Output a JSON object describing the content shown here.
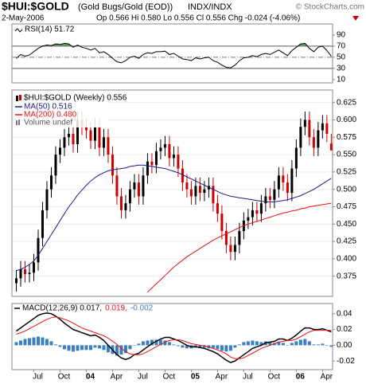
{
  "header": {
    "symbol": "$HUI:$GOLD",
    "name": "(Gold Bugs/Gold (EOD))",
    "exchange": "INDX/INDX",
    "credit": "© StockCharts.com",
    "date": "2-May-2006",
    "quote": "Op 0.566 Hi 0.580 Lo 0.556 Cl 0.556 Chg -0.024 (-4.06%)"
  },
  "chart_data": [
    {
      "type": "rsi",
      "title": "RSI(14) 51.72",
      "color": "#000000",
      "fill_color": "#5f9f5f",
      "overbought": 70,
      "midline": 50,
      "oversold": 30,
      "xlim": [
        -1,
        72.3
      ],
      "ylim": [
        4,
        110
      ],
      "yticks": [
        90,
        70,
        50,
        30,
        10
      ],
      "values": [
        48,
        55,
        52,
        54,
        60,
        66,
        70,
        72,
        71,
        74,
        73,
        75,
        74,
        68,
        72,
        68,
        66,
        63,
        66,
        58,
        60,
        55,
        48,
        42,
        40,
        44,
        50,
        52,
        48,
        55,
        58,
        57,
        60,
        60,
        61,
        55,
        57,
        52,
        47,
        46,
        44,
        49,
        47,
        49,
        50,
        44,
        41,
        36,
        32,
        31,
        36,
        44,
        49,
        50,
        53,
        51,
        55,
        57,
        55,
        59,
        63,
        58,
        53,
        62,
        68,
        74,
        75,
        66,
        60,
        68,
        70,
        62,
        51.72
      ]
    },
    {
      "type": "candlestick",
      "title": "$HUI:$GOLD (Weekly) 0.556",
      "volume_label": "Volume undef",
      "up_color": "#000000",
      "down_color": "#cc0000",
      "xlim": [
        -1,
        72.3
      ],
      "ylim": [
        0.346,
        0.643
      ],
      "grid": true,
      "yticks": [
        0.375,
        {
          "value": 0.4,
          "label": "0.400"
        },
        0.425,
        {
          "value": 0.45,
          "label": "0.450"
        },
        0.475,
        {
          "value": 0.5,
          "label": "0.500"
        },
        0.525,
        {
          "value": 0.55,
          "label": "0.550"
        },
        0.575,
        {
          "value": 0.6,
          "label": "0.600"
        },
        0.625
      ],
      "open": [
        0.365,
        0.372,
        0.385,
        0.378,
        0.38,
        0.395,
        0.43,
        0.47,
        0.5,
        0.52,
        0.55,
        0.56,
        0.575,
        0.58,
        0.565,
        0.6,
        0.59,
        0.585,
        0.57,
        0.59,
        0.56,
        0.575,
        0.55,
        0.52,
        0.49,
        0.47,
        0.48,
        0.5,
        0.51,
        0.49,
        0.52,
        0.54,
        0.535,
        0.555,
        0.56,
        0.565,
        0.545,
        0.55,
        0.53,
        0.51,
        0.5,
        0.49,
        0.505,
        0.495,
        0.5,
        0.505,
        0.48,
        0.465,
        0.44,
        0.42,
        0.41,
        0.42,
        0.44,
        0.455,
        0.46,
        0.47,
        0.465,
        0.48,
        0.49,
        0.485,
        0.5,
        0.52,
        0.51,
        0.495,
        0.53,
        0.56,
        0.59,
        0.6,
        0.575,
        0.56,
        0.585,
        0.595,
        0.566
      ],
      "high": [
        0.384,
        0.397,
        0.397,
        0.392,
        0.407,
        0.442,
        0.482,
        0.512,
        0.532,
        0.562,
        0.572,
        0.587,
        0.592,
        0.592,
        0.612,
        0.612,
        0.602,
        0.597,
        0.602,
        0.602,
        0.587,
        0.587,
        0.562,
        0.532,
        0.502,
        0.492,
        0.512,
        0.522,
        0.522,
        0.532,
        0.552,
        0.552,
        0.567,
        0.572,
        0.577,
        0.577,
        0.562,
        0.562,
        0.542,
        0.522,
        0.512,
        0.517,
        0.517,
        0.512,
        0.517,
        0.517,
        0.492,
        0.477,
        0.452,
        0.432,
        0.432,
        0.452,
        0.467,
        0.472,
        0.482,
        0.482,
        0.492,
        0.502,
        0.502,
        0.512,
        0.532,
        0.532,
        0.522,
        0.542,
        0.572,
        0.602,
        0.612,
        0.612,
        0.587,
        0.597,
        0.607,
        0.607,
        0.58
      ],
      "low": [
        0.353,
        0.36,
        0.366,
        0.366,
        0.368,
        0.383,
        0.418,
        0.458,
        0.488,
        0.508,
        0.538,
        0.548,
        0.563,
        0.553,
        0.553,
        0.578,
        0.573,
        0.558,
        0.558,
        0.548,
        0.548,
        0.538,
        0.508,
        0.478,
        0.458,
        0.458,
        0.468,
        0.488,
        0.478,
        0.478,
        0.508,
        0.523,
        0.523,
        0.543,
        0.548,
        0.533,
        0.533,
        0.518,
        0.498,
        0.488,
        0.478,
        0.478,
        0.483,
        0.483,
        0.488,
        0.468,
        0.453,
        0.428,
        0.408,
        0.398,
        0.398,
        0.408,
        0.428,
        0.443,
        0.448,
        0.453,
        0.453,
        0.468,
        0.473,
        0.473,
        0.488,
        0.498,
        0.483,
        0.483,
        0.518,
        0.548,
        0.578,
        0.563,
        0.548,
        0.548,
        0.573,
        0.568,
        0.556
      ],
      "close": [
        0.372,
        0.385,
        0.378,
        0.38,
        0.395,
        0.43,
        0.47,
        0.5,
        0.52,
        0.55,
        0.56,
        0.575,
        0.58,
        0.565,
        0.6,
        0.59,
        0.585,
        0.57,
        0.59,
        0.56,
        0.575,
        0.55,
        0.52,
        0.49,
        0.47,
        0.48,
        0.5,
        0.51,
        0.49,
        0.52,
        0.54,
        0.535,
        0.555,
        0.56,
        0.565,
        0.545,
        0.55,
        0.53,
        0.51,
        0.5,
        0.49,
        0.505,
        0.495,
        0.5,
        0.505,
        0.48,
        0.465,
        0.44,
        0.42,
        0.41,
        0.42,
        0.44,
        0.455,
        0.46,
        0.47,
        0.465,
        0.48,
        0.49,
        0.485,
        0.5,
        0.52,
        0.51,
        0.495,
        0.53,
        0.56,
        0.59,
        0.6,
        0.575,
        0.56,
        0.585,
        0.595,
        0.58,
        0.556
      ],
      "series": [
        {
          "name": "MA(50) 0.516",
          "color": "#1a1a8c",
          "values": [
            0.383,
            0.385,
            0.388,
            0.392,
            0.397,
            0.405,
            0.415,
            0.425,
            0.435,
            0.445,
            0.455,
            0.465,
            0.475,
            0.483,
            0.492,
            0.499,
            0.506,
            0.512,
            0.517,
            0.521,
            0.524,
            0.527,
            0.528,
            0.529,
            0.53,
            0.531,
            0.533,
            0.534,
            0.535,
            0.535,
            0.534,
            0.533,
            0.532,
            0.531,
            0.53,
            0.528,
            0.526,
            0.524,
            0.521,
            0.518,
            0.515,
            0.512,
            0.509,
            0.506,
            0.503,
            0.5,
            0.497,
            0.494,
            0.492,
            0.49,
            0.489,
            0.488,
            0.487,
            0.486,
            0.485,
            0.484,
            0.483,
            0.482,
            0.482,
            0.482,
            0.483,
            0.484,
            0.485,
            0.487,
            0.489,
            0.491,
            0.494,
            0.497,
            0.5,
            0.504,
            0.508,
            0.512,
            0.516
          ]
        },
        {
          "name": "MA(200) 0.480",
          "color": "#ee1111",
          "values": [
            null,
            null,
            null,
            null,
            null,
            null,
            null,
            null,
            null,
            null,
            null,
            null,
            null,
            null,
            null,
            null,
            null,
            null,
            null,
            null,
            null,
            null,
            null,
            null,
            null,
            null,
            null,
            null,
            null,
            null,
            0.352,
            0.358,
            0.364,
            0.37,
            0.376,
            0.382,
            0.388,
            0.393,
            0.398,
            0.403,
            0.407,
            0.411,
            0.415,
            0.419,
            0.423,
            0.427,
            0.43,
            0.433,
            0.436,
            0.439,
            0.442,
            0.445,
            0.448,
            0.45,
            0.452,
            0.454,
            0.456,
            0.458,
            0.46,
            0.462,
            0.464,
            0.466,
            0.467,
            0.469,
            0.47,
            0.472,
            0.473,
            0.475,
            0.476,
            0.477,
            0.478,
            0.479,
            0.48
          ]
        }
      ]
    },
    {
      "type": "macd",
      "xlim": [
        -1,
        72.3
      ],
      "ylim": [
        -0.031,
        0.053
      ],
      "yticks": [
        0.04,
        0.02,
        {
          "value": 0,
          "label": "0.00"
        },
        -0.02
      ],
      "categories": [
        null,
        null,
        null,
        null,
        "Jul",
        null,
        null,
        null,
        null,
        null,
        "Oct",
        null,
        null,
        null,
        null,
        null,
        "04",
        null,
        null,
        null,
        null,
        null,
        "Apr",
        null,
        null,
        null,
        null,
        null,
        "Jul",
        null,
        null,
        null,
        null,
        null,
        "Oct",
        null,
        null,
        null,
        null,
        null,
        "05",
        null,
        null,
        null,
        null,
        null,
        "Apr",
        null,
        null,
        null,
        null,
        null,
        "Jul",
        null,
        null,
        null,
        null,
        null,
        "Oct",
        null,
        null,
        null,
        null,
        null,
        "06",
        null,
        null,
        null,
        null,
        null,
        "Apr",
        null,
        null
      ],
      "series": [
        {
          "name": "MACD(12,26,9) 0.017,",
          "color": "#000000",
          "kind": "line",
          "values": [
            0.018,
            0.022,
            0.026,
            0.03,
            0.034,
            0.038,
            0.04,
            0.041,
            0.04,
            0.037,
            0.033,
            0.028,
            0.024,
            0.02,
            0.018,
            0.016,
            0.014,
            0.012,
            0.013,
            0.01,
            0.006,
            0.0,
            -0.006,
            -0.012,
            -0.016,
            -0.018,
            -0.016,
            -0.012,
            -0.01,
            -0.006,
            -0.002,
            0.002,
            0.005,
            0.008,
            0.01,
            0.01,
            0.008,
            0.006,
            0.003,
            0.0,
            -0.002,
            -0.002,
            -0.003,
            -0.004,
            -0.006,
            -0.008,
            -0.011,
            -0.015,
            -0.019,
            -0.022,
            -0.02,
            -0.016,
            -0.012,
            -0.008,
            -0.004,
            -0.002,
            0.0,
            0.003,
            0.004,
            0.005,
            0.008,
            0.008,
            0.006,
            0.009,
            0.013,
            0.018,
            0.022,
            0.022,
            0.02,
            0.02,
            0.021,
            0.019,
            0.017
          ]
        },
        {
          "name": "0.019,",
          "color": "#ee1111",
          "kind": "line",
          "values": [
            0.014,
            0.016,
            0.018,
            0.021,
            0.024,
            0.027,
            0.03,
            0.033,
            0.035,
            0.036,
            0.035,
            0.033,
            0.031,
            0.028,
            0.025,
            0.022,
            0.02,
            0.018,
            0.016,
            0.014,
            0.012,
            0.009,
            0.005,
            0.001,
            -0.004,
            -0.008,
            -0.011,
            -0.012,
            -0.012,
            -0.011,
            -0.008,
            -0.005,
            -0.002,
            0.001,
            0.004,
            0.006,
            0.007,
            0.007,
            0.006,
            0.004,
            0.002,
            0.001,
            0.0,
            -0.001,
            -0.002,
            -0.004,
            -0.006,
            -0.008,
            -0.011,
            -0.015,
            -0.017,
            -0.017,
            -0.016,
            -0.013,
            -0.01,
            -0.007,
            -0.004,
            -0.002,
            0.0,
            0.002,
            0.004,
            0.005,
            0.006,
            0.006,
            0.008,
            0.011,
            0.014,
            0.017,
            0.019,
            0.019,
            0.019,
            0.019,
            0.019
          ]
        },
        {
          "name": "-0.002",
          "color": "#3a7fc0",
          "kind": "histogram",
          "values": [
            0.004,
            0.006,
            0.008,
            0.009,
            0.01,
            0.011,
            0.01,
            0.008,
            0.005,
            0.001,
            -0.002,
            -0.005,
            -0.007,
            -0.008,
            -0.007,
            -0.006,
            -0.006,
            -0.006,
            -0.003,
            -0.004,
            -0.006,
            -0.009,
            -0.011,
            -0.013,
            -0.012,
            -0.01,
            -0.005,
            0.0,
            0.002,
            0.005,
            0.006,
            0.007,
            0.007,
            0.007,
            0.006,
            0.004,
            0.001,
            -0.001,
            -0.003,
            -0.004,
            -0.004,
            -0.003,
            -0.003,
            -0.003,
            -0.004,
            -0.004,
            -0.005,
            -0.007,
            -0.008,
            -0.007,
            -0.003,
            0.001,
            0.004,
            0.005,
            0.006,
            0.005,
            0.004,
            0.005,
            0.004,
            0.003,
            0.004,
            0.003,
            0.0,
            0.003,
            0.005,
            0.007,
            0.008,
            0.005,
            0.001,
            0.001,
            0.002,
            0.0,
            -0.002
          ]
        }
      ]
    }
  ]
}
